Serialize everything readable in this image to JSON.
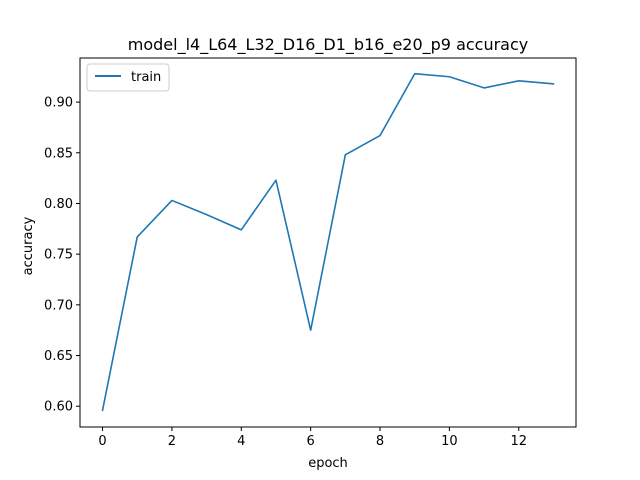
{
  "chart_data": {
    "type": "line",
    "title": "model_l4_L64_L32_D16_D1_b16_e20_p9 accuracy",
    "xlabel": "epoch",
    "ylabel": "accuracy",
    "xlim": [
      -0.65,
      13.65
    ],
    "ylim": [
      0.5795,
      0.9435
    ],
    "xticks": [
      0,
      2,
      4,
      6,
      8,
      10,
      12
    ],
    "yticks": [
      0.6,
      0.65,
      0.7,
      0.75,
      0.8,
      0.85,
      0.9
    ],
    "grid": false,
    "legend_position": "upper-left",
    "series": [
      {
        "name": "train",
        "color": "#1f77b4",
        "x": [
          0,
          1,
          2,
          3,
          4,
          5,
          6,
          7,
          8,
          9,
          10,
          11,
          12,
          13
        ],
        "y": [
          0.596,
          0.767,
          0.803,
          0.789,
          0.774,
          0.823,
          0.675,
          0.848,
          0.867,
          0.928,
          0.925,
          0.914,
          0.921,
          0.918
        ]
      }
    ]
  }
}
